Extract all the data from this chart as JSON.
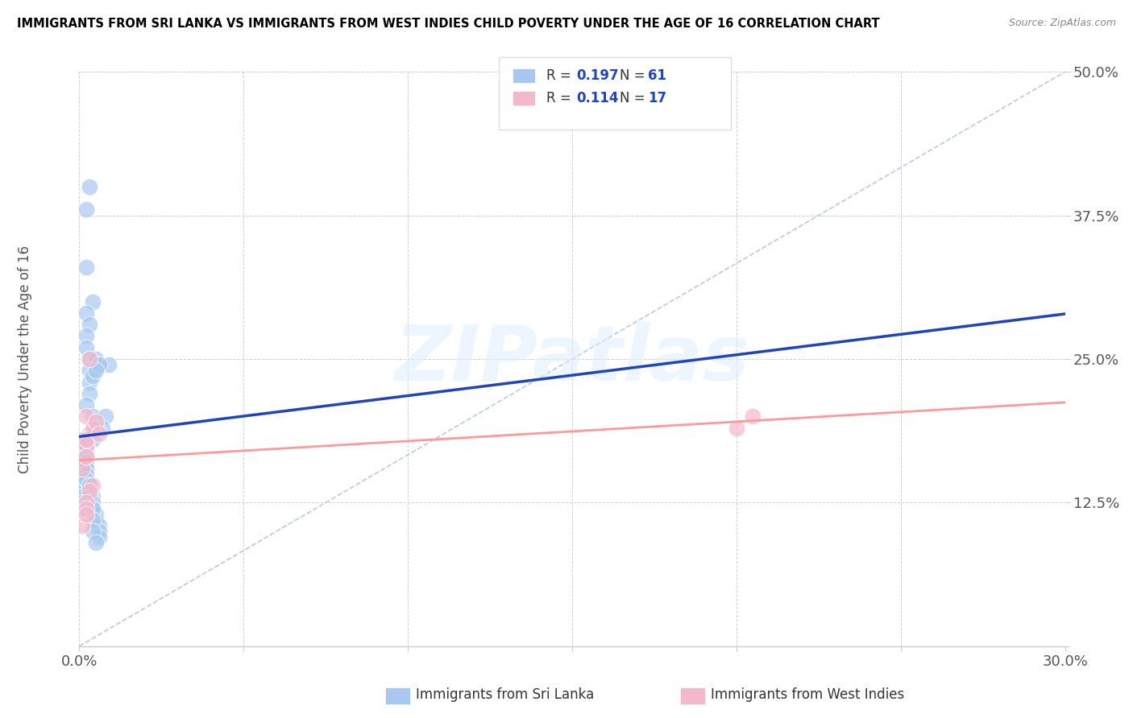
{
  "title": "IMMIGRANTS FROM SRI LANKA VS IMMIGRANTS FROM WEST INDIES CHILD POVERTY UNDER THE AGE OF 16 CORRELATION CHART",
  "source": "Source: ZipAtlas.com",
  "ylabel_left": "Child Poverty Under the Age of 16",
  "legend_blue_R": "0.197",
  "legend_blue_N": "61",
  "legend_pink_R": "0.114",
  "legend_pink_N": "17",
  "legend_blue_label": "Immigrants from Sri Lanka",
  "legend_pink_label": "Immigrants from West Indies",
  "xlim": [
    0.0,
    0.3
  ],
  "ylim": [
    0.0,
    0.5
  ],
  "blue_color": "#A8C8F0",
  "pink_color": "#F4B8CC",
  "trendline_blue_color": "#2244BB",
  "trendline_pink_color": "#FF9999",
  "diagonal_color": "#AABBDD",
  "background_color": "#FFFFFF",
  "sri_lanka_x": [
    0.003,
    0.002,
    0.004,
    0.002,
    0.003,
    0.002,
    0.002,
    0.003,
    0.003,
    0.002,
    0.003,
    0.003,
    0.002,
    0.004,
    0.005,
    0.004,
    0.006,
    0.004,
    0.009,
    0.008,
    0.007,
    0.006,
    0.005,
    0.005,
    0.003,
    0.001,
    0.002,
    0.001,
    0.002,
    0.001,
    0.001,
    0.001,
    0.0005,
    0.0005,
    0.001,
    0.001,
    0.001,
    0.001,
    0.002,
    0.002,
    0.002,
    0.002,
    0.002,
    0.002,
    0.002,
    0.003,
    0.003,
    0.004,
    0.004,
    0.004,
    0.005,
    0.005,
    0.006,
    0.006,
    0.006,
    0.003,
    0.003,
    0.004,
    0.004,
    0.004,
    0.005
  ],
  "sri_lanka_y": [
    0.4,
    0.38,
    0.3,
    0.29,
    0.28,
    0.27,
    0.26,
    0.25,
    0.24,
    0.33,
    0.23,
    0.22,
    0.21,
    0.2,
    0.25,
    0.18,
    0.245,
    0.235,
    0.245,
    0.2,
    0.19,
    0.245,
    0.24,
    0.19,
    0.185,
    0.18,
    0.175,
    0.17,
    0.165,
    0.16,
    0.155,
    0.15,
    0.145,
    0.14,
    0.135,
    0.13,
    0.125,
    0.12,
    0.175,
    0.17,
    0.165,
    0.16,
    0.155,
    0.15,
    0.145,
    0.14,
    0.135,
    0.13,
    0.125,
    0.12,
    0.115,
    0.11,
    0.105,
    0.1,
    0.095,
    0.14,
    0.13,
    0.12,
    0.11,
    0.1,
    0.09
  ],
  "west_indies_x": [
    0.002,
    0.003,
    0.002,
    0.002,
    0.001,
    0.002,
    0.004,
    0.005,
    0.006,
    0.2,
    0.205,
    0.004,
    0.003,
    0.002,
    0.002,
    0.001,
    0.002
  ],
  "west_indies_y": [
    0.175,
    0.25,
    0.18,
    0.2,
    0.155,
    0.165,
    0.19,
    0.195,
    0.185,
    0.19,
    0.2,
    0.14,
    0.135,
    0.125,
    0.12,
    0.105,
    0.115
  ]
}
